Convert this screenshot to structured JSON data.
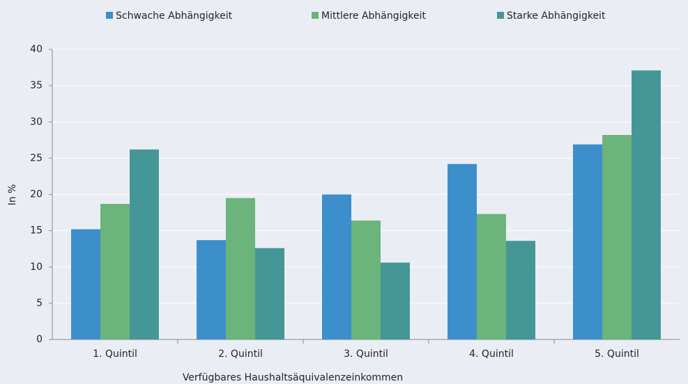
{
  "chart_data": {
    "type": "bar",
    "categories": [
      "1. Quintil",
      "2. Quintil",
      "3. Quintil",
      "4. Quintil",
      "5. Quintil"
    ],
    "series": [
      {
        "name": "Schwache Abhängigkeit",
        "color": "#3d8fcc",
        "values": [
          15.2,
          13.7,
          20.0,
          24.2,
          26.9
        ]
      },
      {
        "name": "Mittlere Abhängigkeit",
        "color": "#6bb47b",
        "values": [
          18.7,
          19.5,
          16.4,
          17.3,
          28.2
        ]
      },
      {
        "name": "Starke Abhängigkeit",
        "color": "#459797",
        "values": [
          26.2,
          12.6,
          10.6,
          13.6,
          37.1
        ]
      }
    ],
    "x_label": "Verfügbares Haushaltsäquivalenzeinkommen",
    "y_label": "In %",
    "ylim": [
      0,
      40
    ],
    "yticks": [
      0,
      5,
      10,
      15,
      20,
      25,
      30,
      35,
      40
    ],
    "grid": true,
    "legend": "top"
  }
}
